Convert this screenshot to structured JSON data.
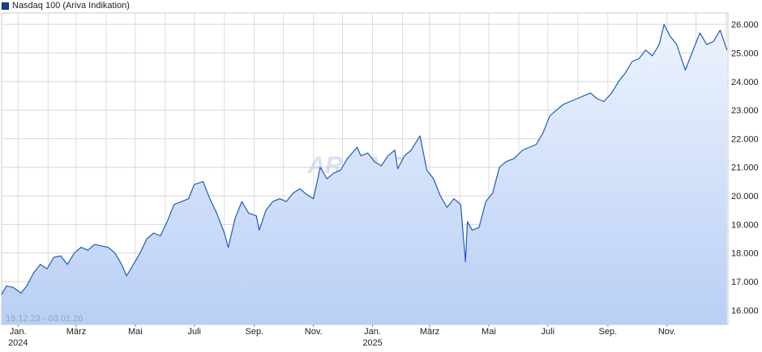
{
  "chart_data": {
    "type": "area",
    "legend": {
      "label": "Nasdaq 100 (Ariva Indikation)",
      "placement": "top-left"
    },
    "date_range_label": "15.12.23 - 03.01.26",
    "watermark": "ARIVA.DE",
    "x_range": [
      "2023-12-15",
      "2026-01-03"
    ],
    "ylim": [
      15500,
      26400
    ],
    "grid": true,
    "colors": {
      "line": "#1f5bbf",
      "fill_top": "#edf3fd",
      "fill_bottom": "#b9cff5",
      "legend": "#1a3f8f"
    },
    "y_ticks": [
      {
        "value": 16000,
        "label": "16.000"
      },
      {
        "value": 17000,
        "label": "17.000"
      },
      {
        "value": 18000,
        "label": "18.000"
      },
      {
        "value": 19000,
        "label": "19.000"
      },
      {
        "value": 20000,
        "label": "20.000"
      },
      {
        "value": 21000,
        "label": "21.000"
      },
      {
        "value": 22000,
        "label": "22.000"
      },
      {
        "value": 23000,
        "label": "23.000"
      },
      {
        "value": 24000,
        "label": "24.000"
      },
      {
        "value": 25000,
        "label": "25.000"
      },
      {
        "value": 26000,
        "label": "26.000"
      }
    ],
    "x_ticks": [
      {
        "date": "2024-01-01",
        "label": "Jan.",
        "sublabel": "2024"
      },
      {
        "date": "2024-03-01",
        "label": "März"
      },
      {
        "date": "2024-05-01",
        "label": "Mai"
      },
      {
        "date": "2024-07-01",
        "label": "Juli"
      },
      {
        "date": "2024-09-01",
        "label": "Sep."
      },
      {
        "date": "2024-11-01",
        "label": "Nov."
      },
      {
        "date": "2025-01-01",
        "label": "Jan.",
        "sublabel": "2025"
      },
      {
        "date": "2025-03-01",
        "label": "März"
      },
      {
        "date": "2025-05-01",
        "label": "Mai"
      },
      {
        "date": "2025-07-01",
        "label": "Juli"
      },
      {
        "date": "2025-09-01",
        "label": "Sep."
      },
      {
        "date": "2025-11-01",
        "label": "Nov."
      }
    ],
    "series": [
      {
        "x": [
          "2023-12-15",
          "2023-12-20",
          "2023-12-27",
          "2024-01-04",
          "2024-01-10",
          "2024-01-17",
          "2024-01-24",
          "2024-01-31",
          "2024-02-07",
          "2024-02-14",
          "2024-02-21",
          "2024-02-28",
          "2024-03-06",
          "2024-03-13",
          "2024-03-20",
          "2024-03-27",
          "2024-04-03",
          "2024-04-10",
          "2024-04-17",
          "2024-04-22",
          "2024-04-29",
          "2024-05-06",
          "2024-05-13",
          "2024-05-20",
          "2024-05-27",
          "2024-06-03",
          "2024-06-10",
          "2024-06-18",
          "2024-06-25",
          "2024-07-01",
          "2024-07-10",
          "2024-07-17",
          "2024-07-24",
          "2024-08-01",
          "2024-08-05",
          "2024-08-12",
          "2024-08-19",
          "2024-08-26",
          "2024-09-03",
          "2024-09-06",
          "2024-09-13",
          "2024-09-20",
          "2024-09-27",
          "2024-10-04",
          "2024-10-11",
          "2024-10-18",
          "2024-10-25",
          "2024-11-01",
          "2024-11-08",
          "2024-11-15",
          "2024-11-22",
          "2024-11-29",
          "2024-12-06",
          "2024-12-16",
          "2024-12-20",
          "2024-12-27",
          "2025-01-03",
          "2025-01-10",
          "2025-01-17",
          "2025-01-24",
          "2025-01-27",
          "2025-02-03",
          "2025-02-10",
          "2025-02-19",
          "2025-02-26",
          "2025-03-05",
          "2025-03-12",
          "2025-03-19",
          "2025-03-26",
          "2025-04-02",
          "2025-04-07",
          "2025-04-09",
          "2025-04-14",
          "2025-04-21",
          "2025-04-28",
          "2025-05-05",
          "2025-05-12",
          "2025-05-19",
          "2025-05-27",
          "2025-06-05",
          "2025-06-12",
          "2025-06-19",
          "2025-06-26",
          "2025-07-03",
          "2025-07-10",
          "2025-07-17",
          "2025-07-24",
          "2025-07-31",
          "2025-08-07",
          "2025-08-14",
          "2025-08-21",
          "2025-08-28",
          "2025-09-05",
          "2025-09-12",
          "2025-09-19",
          "2025-09-26",
          "2025-10-03",
          "2025-10-10",
          "2025-10-17",
          "2025-10-24",
          "2025-10-29",
          "2025-11-04",
          "2025-11-11",
          "2025-11-20",
          "2025-11-28",
          "2025-12-05",
          "2025-12-12",
          "2025-12-19",
          "2025-12-26",
          "2026-01-02"
        ],
        "values": [
          16550,
          16850,
          16800,
          16600,
          16850,
          17300,
          17600,
          17450,
          17850,
          17900,
          17600,
          18000,
          18200,
          18100,
          18300,
          18250,
          18200,
          18000,
          17600,
          17200,
          17600,
          18000,
          18500,
          18700,
          18600,
          19100,
          19700,
          19800,
          19900,
          20400,
          20500,
          19900,
          19400,
          18700,
          18200,
          19200,
          19800,
          19400,
          19300,
          18800,
          19500,
          19800,
          19900,
          19800,
          20100,
          20250,
          20050,
          19900,
          21000,
          20600,
          20800,
          20900,
          21300,
          21700,
          21400,
          21500,
          21200,
          21050,
          21400,
          21600,
          20950,
          21400,
          21600,
          22100,
          20900,
          20600,
          20000,
          19600,
          19900,
          19700,
          17700,
          19100,
          18800,
          18900,
          19800,
          20100,
          21000,
          21200,
          21300,
          21600,
          21700,
          21800,
          22200,
          22800,
          23000,
          23200,
          23300,
          23400,
          23500,
          23600,
          23400,
          23300,
          23600,
          24000,
          24300,
          24700,
          24800,
          25100,
          24900,
          25300,
          26000,
          25600,
          25300,
          24400,
          25100,
          25700,
          25300,
          25400,
          25800,
          25100
        ]
      }
    ]
  }
}
